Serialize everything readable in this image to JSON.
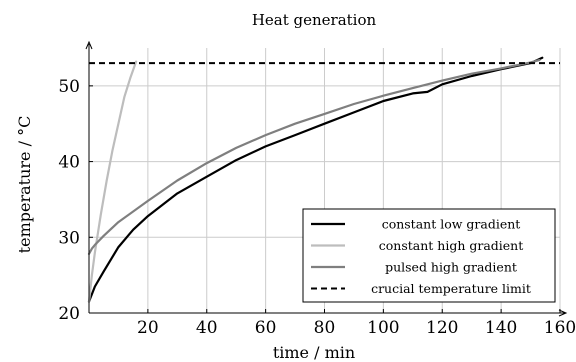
{
  "chart_data": {
    "type": "line",
    "title": "Heat generation",
    "xlabel": "time / min",
    "ylabel": "temperature / °C",
    "xlim": [
      0,
      160
    ],
    "ylim": [
      20,
      55
    ],
    "xticks": [
      20,
      40,
      60,
      80,
      100,
      120,
      140,
      160
    ],
    "yticks": [
      20,
      30,
      40,
      50
    ],
    "grid": true,
    "legend_position": "bottom-right",
    "series": [
      {
        "name": "constant low gradient",
        "color": "#000000",
        "style": "solid",
        "x": [
          0,
          2,
          5,
          10,
          15,
          20,
          30,
          40,
          50,
          60,
          70,
          80,
          90,
          100,
          110,
          115,
          120,
          130,
          140,
          150,
          154
        ],
        "y": [
          21.5,
          23.5,
          25.5,
          28.7,
          31.0,
          32.8,
          35.8,
          38.0,
          40.2,
          42.0,
          43.5,
          45.0,
          46.5,
          48.0,
          49.0,
          49.2,
          50.2,
          51.3,
          52.2,
          53.0,
          53.7
        ]
      },
      {
        "name": "constant high gradient",
        "color": "#bdbdbd",
        "style": "solid",
        "x": [
          0,
          1,
          2,
          4,
          6,
          8,
          10,
          12,
          14,
          16
        ],
        "y": [
          21.5,
          25.0,
          28.0,
          33.0,
          37.5,
          41.5,
          45.0,
          48.5,
          51.0,
          53.2
        ]
      },
      {
        "name": "pulsed high gradient",
        "color": "#7f7f7f",
        "style": "solid",
        "x": [
          0,
          1,
          2,
          5,
          10,
          20,
          30,
          40,
          50,
          60,
          70,
          80,
          90,
          100,
          110,
          120,
          130,
          140,
          150,
          153
        ],
        "y": [
          27.8,
          28.5,
          29.0,
          30.2,
          32.0,
          34.8,
          37.5,
          39.8,
          41.8,
          43.5,
          45.0,
          46.3,
          47.6,
          48.7,
          49.7,
          50.7,
          51.6,
          52.3,
          53.1,
          53.4
        ]
      },
      {
        "name": "crucial temperature limit",
        "color": "#000000",
        "style": "dashed",
        "x": [
          0,
          160
        ],
        "y": [
          53.0,
          53.0
        ]
      }
    ]
  }
}
